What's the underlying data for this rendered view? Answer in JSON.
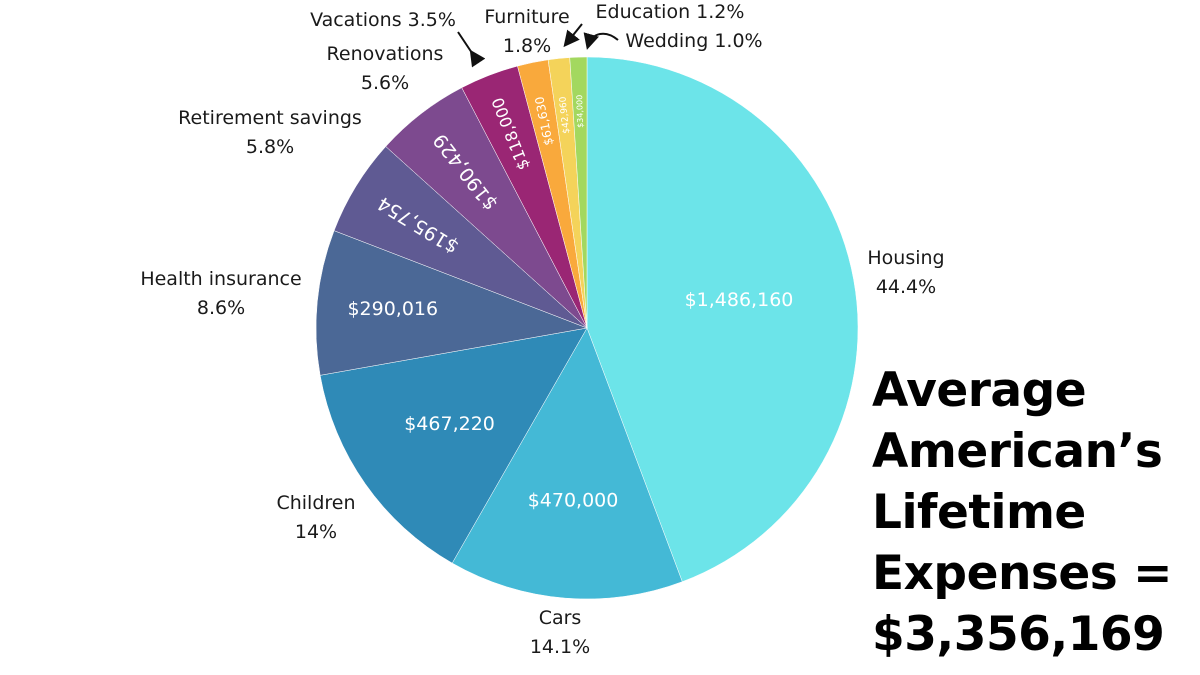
{
  "chart_data": {
    "type": "pie",
    "title": "Average American’s Lifetime Expenses = $3,356,169",
    "title_lines": [
      "Average",
      "American’s",
      "Lifetime",
      "Expenses =",
      "$3,356,169"
    ],
    "total": "$3,356,169",
    "slices": [
      {
        "name": "Housing",
        "value": 1486160,
        "value_label": "$1,486,160",
        "percent_label": "44.4%",
        "color": "#6ce4e9"
      },
      {
        "name": "Cars",
        "value": 470000,
        "value_label": "$470,000",
        "percent_label": "14.1%",
        "color": "#44b9d6"
      },
      {
        "name": "Children",
        "value": 467220,
        "value_label": "$467,220",
        "percent_label": "14%",
        "color": "#2f8ab7"
      },
      {
        "name": "Health insurance",
        "value": 290016,
        "value_label": "$290,016",
        "percent_label": "8.6%",
        "color": "#4b6896"
      },
      {
        "name": "Retirement savings",
        "value": 195754,
        "value_label": "$195,754",
        "percent_label": "5.8%",
        "color": "#5f5a93"
      },
      {
        "name": "Renovations",
        "value": 190429,
        "value_label": "$190,429",
        "percent_label": "5.6%",
        "color": "#7d4a8f"
      },
      {
        "name": "Vacations",
        "value": 118000,
        "value_label": "$118,000",
        "percent_label": "3.5%",
        "color": "#9a2674"
      },
      {
        "name": "Furniture",
        "value": 61630,
        "value_label": "$61,630",
        "percent_label": "1.8%",
        "color": "#f9a93c"
      },
      {
        "name": "Education",
        "value": 42960,
        "value_label": "$42,960",
        "percent_label": "1.2%",
        "color": "#f4d35a"
      },
      {
        "name": "Wedding",
        "value": 34000,
        "value_label": "$34,000",
        "percent_label": "1.0%",
        "color": "#a3d85f"
      }
    ]
  }
}
